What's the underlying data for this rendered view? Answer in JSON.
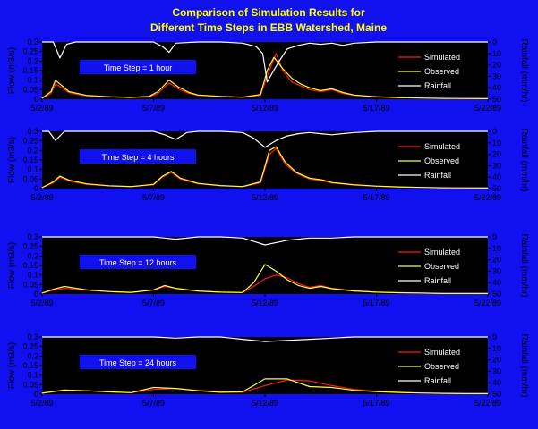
{
  "title_line1": "Comparison of Simulation Results for",
  "title_line2": "Different Time Steps in EBB Watershed, Maine",
  "colors": {
    "background": "#1010f0",
    "plot_bg": "#000000",
    "simulated": "#ff1a1a",
    "observed": "#ffff33",
    "rainfall": "#ffffff",
    "label_box": "#1010f0",
    "title": "#ffff00"
  },
  "chart_data": [
    {
      "type": "line",
      "time_step_label": "Time Step =   1 hour",
      "ylabel": "Flow (m3/s)",
      "y2label": "Rainfall (mm/hr)",
      "ylim": [
        0,
        0.3
      ],
      "y2lim": [
        0,
        50
      ],
      "y2_inverted": true,
      "yticks": [
        "0",
        "0.05",
        "0.1",
        "0.15",
        "0.2",
        "0.25",
        "0.3"
      ],
      "y2ticks": [
        "0",
        "10",
        "20",
        "30",
        "40",
        "50"
      ],
      "xticks": [
        "5/2/89",
        "5/7/89",
        "5/12/89",
        "5/17/89",
        "5/22/89"
      ],
      "xlim": [
        0,
        20
      ],
      "legend": [
        "Simulated",
        "Observed",
        "Rainfall"
      ],
      "legend_position": "right",
      "grid": false,
      "series": [
        {
          "name": "Simulated",
          "x": [
            0,
            0.4,
            0.6,
            0.9,
            1.2,
            1.6,
            2,
            3,
            4,
            4.8,
            5.2,
            5.7,
            6.1,
            6.6,
            7,
            8,
            9,
            9.8,
            10.1,
            10.5,
            10.8,
            11.2,
            11.6,
            12,
            12.5,
            13,
            13.5,
            14,
            15,
            16,
            17,
            18,
            20
          ],
          "values": [
            0.005,
            0.03,
            0.08,
            0.06,
            0.035,
            0.025,
            0.018,
            0.012,
            0.009,
            0.012,
            0.03,
            0.085,
            0.055,
            0.03,
            0.02,
            0.014,
            0.01,
            0.02,
            0.12,
            0.24,
            0.15,
            0.09,
            0.07,
            0.05,
            0.04,
            0.05,
            0.03,
            0.02,
            0.012,
            0.008,
            0.006,
            0.004,
            0.003
          ]
        },
        {
          "name": "Observed",
          "x": [
            0,
            0.4,
            0.6,
            0.9,
            1.2,
            1.6,
            2,
            3,
            4,
            4.8,
            5.2,
            5.7,
            6.1,
            6.6,
            7,
            8,
            9,
            9.8,
            10.1,
            10.4,
            10.8,
            11.2,
            11.6,
            12,
            12.5,
            13,
            13.5,
            14,
            15,
            16,
            17,
            18,
            20
          ],
          "values": [
            0.005,
            0.04,
            0.1,
            0.07,
            0.04,
            0.03,
            0.02,
            0.013,
            0.01,
            0.015,
            0.04,
            0.1,
            0.065,
            0.035,
            0.022,
            0.015,
            0.011,
            0.025,
            0.15,
            0.22,
            0.16,
            0.11,
            0.08,
            0.06,
            0.045,
            0.055,
            0.035,
            0.022,
            0.013,
            0.009,
            0.006,
            0.004,
            0.003
          ]
        },
        {
          "name": "Rainfall",
          "x": [
            0,
            0.5,
            0.8,
            1.1,
            1.5,
            2,
            3,
            4,
            5,
            5.4,
            5.7,
            6,
            7,
            8,
            9,
            9.6,
            9.9,
            10.1,
            10.3,
            10.6,
            11,
            11.5,
            12,
            12.5,
            13,
            13.5,
            14,
            15,
            16,
            17,
            18,
            19,
            20
          ],
          "values": [
            0,
            0,
            14,
            2,
            0,
            0,
            0,
            0,
            0,
            4,
            9,
            1,
            0,
            0,
            1,
            4,
            10,
            35,
            28,
            18,
            6,
            3,
            1,
            2,
            1,
            3,
            1,
            0,
            0,
            0,
            0,
            0,
            0
          ]
        }
      ]
    },
    {
      "type": "line",
      "time_step_label": "Time Step = 4 hours",
      "ylabel": "Flow (m3/s)",
      "y2label": "Rainfall (mm/hr)",
      "ylim": [
        0,
        0.3
      ],
      "y2lim": [
        0,
        50
      ],
      "y2_inverted": true,
      "yticks": [
        "0",
        "0.05",
        "0.1",
        "0.15",
        "0.2",
        "0.25",
        "0.3"
      ],
      "y2ticks": [
        "0",
        "10",
        "20",
        "30",
        "40",
        "50"
      ],
      "xticks": [
        "5/2/89",
        "5/7/89",
        "5/12/89",
        "5/17/89",
        "5/22/89"
      ],
      "xlim": [
        0,
        20
      ],
      "legend": [
        "Simulated",
        "Observed",
        "Rainfall"
      ],
      "legend_position": "right",
      "grid": false,
      "series": [
        {
          "name": "Simulated",
          "x": [
            0,
            0.5,
            0.8,
            1.2,
            2,
            3,
            4,
            5,
            5.4,
            5.8,
            6.2,
            7,
            8,
            9,
            9.8,
            10.2,
            10.5,
            10.9,
            11.4,
            12,
            12.6,
            13,
            14,
            15,
            16,
            17,
            18,
            20
          ],
          "values": [
            0.005,
            0.03,
            0.06,
            0.04,
            0.022,
            0.014,
            0.01,
            0.02,
            0.06,
            0.085,
            0.05,
            0.025,
            0.015,
            0.01,
            0.03,
            0.18,
            0.21,
            0.13,
            0.08,
            0.05,
            0.04,
            0.03,
            0.018,
            0.012,
            0.008,
            0.006,
            0.004,
            0.003
          ]
        },
        {
          "name": "Observed",
          "x": [
            0,
            0.5,
            0.8,
            1.2,
            2,
            3,
            4,
            5,
            5.4,
            5.8,
            6.2,
            7,
            8,
            9,
            9.8,
            10.2,
            10.5,
            10.9,
            11.4,
            12,
            12.6,
            13,
            14,
            15,
            16,
            17,
            18,
            20
          ],
          "values": [
            0.005,
            0.035,
            0.065,
            0.045,
            0.025,
            0.015,
            0.011,
            0.022,
            0.065,
            0.09,
            0.055,
            0.027,
            0.016,
            0.011,
            0.035,
            0.2,
            0.22,
            0.14,
            0.085,
            0.055,
            0.045,
            0.032,
            0.02,
            0.013,
            0.009,
            0.006,
            0.004,
            0.003
          ]
        },
        {
          "name": "Rainfall",
          "x": [
            0,
            0.3,
            0.6,
            1,
            1.5,
            2,
            3,
            4,
            5,
            5.5,
            6,
            6.5,
            7,
            8,
            9,
            9.5,
            10,
            10.5,
            11,
            11.5,
            12,
            12.5,
            13,
            14,
            15,
            16,
            17,
            18,
            19,
            20
          ],
          "values": [
            0,
            0,
            8,
            0,
            0,
            0,
            0,
            0,
            0,
            3,
            7,
            1,
            0,
            0,
            1,
            6,
            14,
            8,
            4,
            2,
            1,
            2,
            3,
            1,
            0,
            0,
            0,
            0,
            0,
            0
          ]
        }
      ]
    },
    {
      "type": "line",
      "time_step_label": "Time Step = 12 hours",
      "ylabel": "Flow (m3/s)",
      "y2label": "Rainfall (mm/hr)",
      "ylim": [
        0,
        0.3
      ],
      "y2lim": [
        0,
        50
      ],
      "y2_inverted": true,
      "yticks": [
        "0",
        "0.05",
        "0.1",
        "0.15",
        "0.2",
        "0.25",
        "0.3"
      ],
      "y2ticks": [
        "0",
        "10",
        "20",
        "30",
        "40",
        "50"
      ],
      "xticks": [
        "5/2/89",
        "5/7/89",
        "5/12/89",
        "5/17/89",
        "5/22/89"
      ],
      "xlim": [
        0,
        20
      ],
      "legend": [
        "Simulated",
        "Observed",
        "Rainfall"
      ],
      "legend_position": "right",
      "grid": false,
      "series": [
        {
          "name": "Simulated",
          "x": [
            0,
            0.5,
            1,
            2,
            3,
            4,
            5,
            5.5,
            6,
            7,
            8,
            9,
            9.5,
            10,
            10.5,
            11,
            11.5,
            12,
            12.5,
            13,
            14,
            15,
            16,
            17,
            18,
            20
          ],
          "values": [
            0.005,
            0.02,
            0.03,
            0.02,
            0.012,
            0.008,
            0.02,
            0.04,
            0.03,
            0.015,
            0.01,
            0.008,
            0.04,
            0.08,
            0.1,
            0.085,
            0.055,
            0.035,
            0.045,
            0.03,
            0.018,
            0.01,
            0.007,
            0.005,
            0.003,
            0.003
          ]
        },
        {
          "name": "Observed",
          "x": [
            0,
            0.5,
            1,
            2,
            3,
            4,
            5,
            5.5,
            6,
            7,
            8,
            9,
            9.5,
            10,
            10.5,
            11,
            11.5,
            12,
            12.5,
            13,
            14,
            15,
            16,
            17,
            18,
            20
          ],
          "values": [
            0.005,
            0.025,
            0.04,
            0.022,
            0.013,
            0.009,
            0.022,
            0.045,
            0.03,
            0.016,
            0.01,
            0.008,
            0.06,
            0.155,
            0.12,
            0.075,
            0.045,
            0.03,
            0.04,
            0.028,
            0.016,
            0.01,
            0.007,
            0.005,
            0.003,
            0.003
          ]
        },
        {
          "name": "Rainfall",
          "x": [
            0,
            1,
            2,
            3,
            4,
            5,
            5.5,
            6,
            7,
            8,
            9,
            9.5,
            10,
            10.5,
            11,
            11.5,
            12,
            13,
            14,
            15,
            16,
            17,
            18,
            19,
            20
          ],
          "values": [
            0,
            0,
            0,
            0,
            0,
            0,
            1,
            2,
            0,
            0,
            1,
            4,
            7,
            5,
            3,
            2,
            1,
            1,
            0,
            0,
            0,
            0,
            0,
            0,
            0
          ]
        }
      ]
    },
    {
      "type": "line",
      "time_step_label": "Time Step = 24 hours",
      "ylabel": "Flow (m3/s)",
      "y2label": "Rainfall (mm/hr)",
      "ylim": [
        0,
        0.3
      ],
      "y2lim": [
        0,
        50
      ],
      "y2_inverted": true,
      "yticks": [
        "0",
        "0.05",
        "0.1",
        "0.15",
        "0.2",
        "0.25",
        "0.3"
      ],
      "y2ticks": [
        "0",
        "10",
        "20",
        "30",
        "40",
        "50"
      ],
      "xticks": [
        "5/2/89",
        "5/7/89",
        "5/12/89",
        "5/17/89",
        "5/22/89"
      ],
      "xlim": [
        0,
        20
      ],
      "legend": [
        "Simulated",
        "Observed",
        "Rainfall"
      ],
      "legend_position": "right",
      "grid": false,
      "series": [
        {
          "name": "Simulated",
          "x": [
            0,
            1,
            2,
            3,
            4,
            5,
            6,
            7,
            8,
            9,
            10,
            11,
            12,
            13,
            14,
            15,
            16,
            17,
            18,
            19,
            20
          ],
          "values": [
            0.005,
            0.02,
            0.018,
            0.012,
            0.008,
            0.025,
            0.03,
            0.02,
            0.012,
            0.01,
            0.045,
            0.075,
            0.07,
            0.045,
            0.025,
            0.015,
            0.01,
            0.006,
            0.004,
            0.003,
            0.003
          ]
        },
        {
          "name": "Observed",
          "x": [
            0,
            1,
            2,
            3,
            4,
            5,
            6,
            7,
            8,
            9,
            10,
            11,
            12,
            13,
            14,
            15,
            16,
            17,
            18,
            19,
            20
          ],
          "values": [
            0.005,
            0.022,
            0.018,
            0.012,
            0.008,
            0.035,
            0.03,
            0.018,
            0.01,
            0.012,
            0.08,
            0.08,
            0.04,
            0.035,
            0.02,
            0.013,
            0.009,
            0.006,
            0.004,
            0.003,
            0.003
          ]
        },
        {
          "name": "Rainfall",
          "x": [
            0,
            1,
            2,
            3,
            4,
            5,
            6,
            7,
            8,
            9,
            10,
            11,
            12,
            13,
            14,
            15,
            16,
            17,
            18,
            19,
            20
          ],
          "values": [
            0,
            0,
            0,
            0,
            0,
            0,
            1,
            0,
            0,
            2,
            4,
            3,
            2,
            1,
            0,
            0,
            0,
            0,
            0,
            0,
            0
          ]
        }
      ]
    }
  ]
}
